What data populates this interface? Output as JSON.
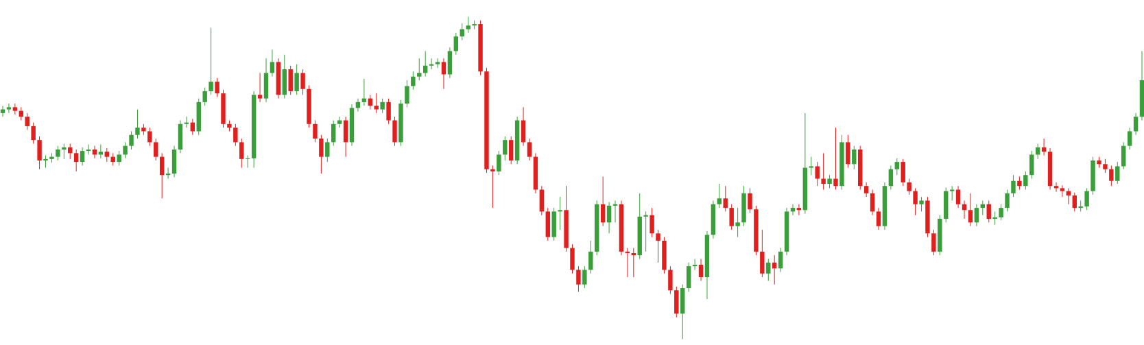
{
  "chart_data": {
    "type": "candlestick",
    "open": [
      325,
      330,
      333,
      328,
      320,
      307,
      288,
      260,
      262,
      265,
      275,
      278,
      270,
      258,
      273,
      275,
      268,
      272,
      265,
      258,
      268,
      280,
      295,
      305,
      300,
      285,
      265,
      240,
      242,
      275,
      310,
      312,
      300,
      340,
      355,
      368,
      352,
      310,
      305,
      285,
      262,
      263,
      350,
      345,
      380,
      395,
      350,
      385,
      355,
      380,
      358,
      310,
      290,
      265,
      285,
      310,
      315,
      285,
      332,
      340,
      345,
      335,
      330,
      340,
      315,
      285,
      338,
      362,
      375,
      380,
      390,
      392,
      395,
      378,
      410,
      430,
      440,
      445,
      447,
      382,
      248,
      245,
      268,
      288,
      260,
      315,
      285,
      265,
      220,
      190,
      155,
      190,
      192,
      140,
      110,
      90,
      110,
      135,
      200,
      175,
      198,
      200,
      135,
      133,
      130,
      183,
      185,
      160,
      150,
      110,
      82,
      50,
      85,
      115,
      117,
      100,
      158,
      200,
      208,
      195,
      170,
      175,
      215,
      193,
      135,
      105,
      120,
      112,
      135,
      190,
      195,
      192,
      250,
      252,
      235,
      228,
      235,
      225,
      285,
      255,
      275,
      225,
      215,
      190,
      170,
      225,
      248,
      258,
      230,
      218,
      200,
      205,
      160,
      135,
      180,
      218,
      220,
      200,
      192,
      175,
      195,
      200,
      180,
      182,
      195,
      215,
      232,
      225,
      240,
      268,
      278,
      272,
      225,
      222,
      218,
      212,
      195,
      197,
      218,
      260,
      255,
      248,
      232,
      252,
      280,
      300,
      320
    ],
    "high": [
      335,
      338,
      338,
      333,
      325,
      312,
      293,
      267,
      270,
      280,
      283,
      283,
      275,
      278,
      282,
      280,
      282,
      277,
      270,
      273,
      285,
      300,
      330,
      310,
      305,
      290,
      270,
      250,
      280,
      315,
      320,
      317,
      345,
      360,
      442,
      373,
      357,
      315,
      310,
      290,
      267,
      355,
      380,
      400,
      412,
      400,
      405,
      390,
      392,
      385,
      363,
      315,
      295,
      290,
      315,
      320,
      320,
      337,
      345,
      372,
      350,
      352,
      345,
      345,
      320,
      343,
      370,
      382,
      400,
      410,
      400,
      400,
      400,
      415,
      435,
      448,
      457,
      452,
      452,
      387,
      253,
      273,
      293,
      293,
      320,
      333,
      290,
      270,
      225,
      195,
      195,
      210,
      225,
      145,
      115,
      115,
      150,
      205,
      238,
      203,
      205,
      205,
      140,
      140,
      215,
      190,
      195,
      165,
      155,
      115,
      87,
      90,
      120,
      125,
      125,
      163,
      205,
      228,
      225,
      200,
      195,
      225,
      222,
      198,
      165,
      125,
      130,
      140,
      195,
      200,
      200,
      325,
      265,
      258,
      270,
      240,
      305,
      295,
      295,
      280,
      280,
      230,
      220,
      195,
      230,
      253,
      263,
      262,
      235,
      222,
      210,
      210,
      165,
      185,
      223,
      225,
      225,
      205,
      215,
      200,
      205,
      205,
      190,
      200,
      220,
      240,
      238,
      245,
      273,
      283,
      290,
      277,
      230,
      226,
      222,
      216,
      205,
      222,
      265,
      265,
      262,
      253,
      258,
      285,
      305,
      325,
      410
    ],
    "low": [
      320,
      325,
      323,
      315,
      302,
      283,
      248,
      250,
      257,
      260,
      262,
      262,
      245,
      253,
      268,
      263,
      263,
      258,
      253,
      253,
      263,
      275,
      290,
      295,
      280,
      260,
      208,
      235,
      237,
      270,
      305,
      295,
      295,
      335,
      350,
      347,
      305,
      300,
      280,
      250,
      250,
      250,
      340,
      340,
      375,
      345,
      345,
      350,
      350,
      350,
      305,
      285,
      242,
      258,
      280,
      305,
      265,
      280,
      327,
      335,
      330,
      325,
      325,
      310,
      280,
      280,
      333,
      357,
      370,
      375,
      385,
      387,
      358,
      373,
      405,
      425,
      435,
      440,
      377,
      243,
      195,
      240,
      260,
      255,
      255,
      280,
      260,
      215,
      185,
      150,
      150,
      165,
      135,
      105,
      80,
      85,
      105,
      130,
      170,
      160,
      175,
      130,
      100,
      100,
      125,
      135,
      155,
      120,
      105,
      77,
      45,
      15,
      80,
      110,
      95,
      70,
      153,
      195,
      190,
      165,
      155,
      170,
      188,
      130,
      100,
      95,
      90,
      107,
      130,
      185,
      185,
      187,
      240,
      225,
      220,
      222,
      220,
      220,
      250,
      248,
      220,
      210,
      185,
      165,
      165,
      220,
      240,
      225,
      213,
      185,
      190,
      155,
      130,
      130,
      175,
      205,
      195,
      180,
      170,
      170,
      185,
      175,
      172,
      178,
      190,
      210,
      220,
      220,
      235,
      262,
      267,
      220,
      217,
      210,
      200,
      190,
      190,
      192,
      213,
      250,
      243,
      225,
      228,
      248,
      275,
      295,
      315
    ],
    "close": [
      330,
      333,
      328,
      320,
      307,
      288,
      260,
      262,
      265,
      275,
      278,
      270,
      258,
      273,
      275,
      268,
      272,
      265,
      258,
      268,
      280,
      295,
      305,
      300,
      285,
      265,
      240,
      242,
      275,
      310,
      312,
      300,
      340,
      355,
      368,
      352,
      310,
      305,
      285,
      262,
      263,
      350,
      345,
      380,
      395,
      350,
      385,
      355,
      380,
      358,
      310,
      290,
      265,
      285,
      310,
      315,
      285,
      332,
      340,
      345,
      335,
      330,
      340,
      315,
      285,
      338,
      362,
      375,
      380,
      390,
      392,
      395,
      378,
      410,
      430,
      440,
      445,
      447,
      382,
      248,
      245,
      268,
      288,
      260,
      315,
      285,
      265,
      220,
      190,
      155,
      190,
      192,
      140,
      110,
      90,
      110,
      135,
      200,
      175,
      198,
      200,
      135,
      133,
      130,
      183,
      185,
      160,
      150,
      110,
      82,
      50,
      85,
      115,
      117,
      100,
      158,
      200,
      208,
      195,
      170,
      175,
      215,
      193,
      135,
      105,
      120,
      112,
      135,
      190,
      195,
      192,
      250,
      252,
      235,
      228,
      235,
      225,
      285,
      255,
      275,
      225,
      215,
      190,
      170,
      225,
      248,
      258,
      230,
      218,
      200,
      205,
      160,
      135,
      180,
      218,
      220,
      200,
      192,
      175,
      195,
      200,
      180,
      182,
      195,
      215,
      232,
      225,
      240,
      268,
      278,
      272,
      225,
      222,
      218,
      212,
      195,
      197,
      218,
      260,
      255,
      248,
      232,
      252,
      280,
      300,
      320,
      370
    ],
    "ylim": [
      7,
      480
    ],
    "up_color": "#3a9e3a",
    "down_color": "#e0201e"
  }
}
